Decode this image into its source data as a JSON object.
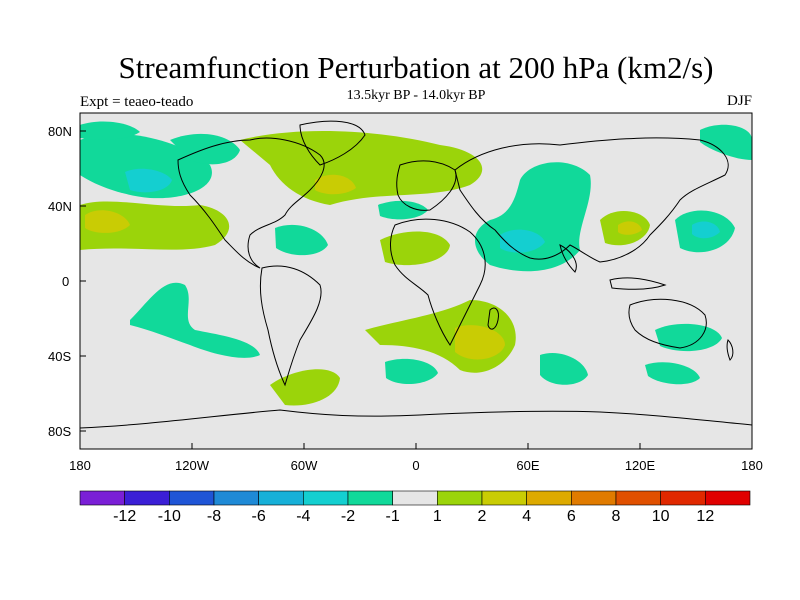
{
  "title": "Streamfunction Perturbation at 200 hPa (km2/s)",
  "subtitle": "13.5kyr BP - 14.0kyr BP",
  "left_label": "Expt = teaeo-teado",
  "right_label": "DJF",
  "map": {
    "background_color": "#e6e6e6",
    "coastline_color": "#000000",
    "lon_range": [
      -180,
      180
    ],
    "lat_range": [
      -90,
      90
    ],
    "x_tick_labels": [
      "180",
      "120W",
      "60W",
      "0",
      "60E",
      "120E",
      "180"
    ],
    "y_tick_labels": [
      "80N",
      "40N",
      "0",
      "40S",
      "80S"
    ]
  },
  "colorbar": {
    "labels": [
      "-12",
      "-10",
      "-8",
      "-6",
      "-4",
      "-2",
      "-1",
      "1",
      "2",
      "4",
      "6",
      "8",
      "10",
      "12"
    ],
    "colors": [
      "#7a1fd6",
      "#3b1fd6",
      "#1f55d6",
      "#1f8ad6",
      "#17b0d8",
      "#14cfd0",
      "#11d99a",
      "#e6e6e6",
      "#9bd40a",
      "#c9cc04",
      "#ddaa00",
      "#e07b00",
      "#e05000",
      "#e02800",
      "#e00000"
    ]
  },
  "field_regions": [
    {
      "level": "-1",
      "color": "#11d99a",
      "shape": "north-pacific-high-lat"
    },
    {
      "level": "-2",
      "color": "#14cfd0",
      "shape": "north-pacific-core"
    },
    {
      "level": "1",
      "color": "#9bd40a",
      "shape": "north-atlantic-band"
    },
    {
      "level": "2",
      "color": "#c9cc04",
      "shape": "north-atlantic-core"
    },
    {
      "level": "-1",
      "color": "#11d99a",
      "shape": "eurasia-middle-east"
    },
    {
      "level": "-2",
      "color": "#14cfd0",
      "shape": "middle-east-core"
    },
    {
      "level": "1",
      "color": "#9bd40a",
      "shape": "south-atlantic-africa"
    },
    {
      "level": "2",
      "color": "#c9cc04",
      "shape": "south-africa-core"
    },
    {
      "level": "-1",
      "color": "#11d99a",
      "shape": "south-pacific-blob"
    },
    {
      "level": "-1",
      "color": "#11d99a",
      "shape": "australia-south"
    }
  ]
}
